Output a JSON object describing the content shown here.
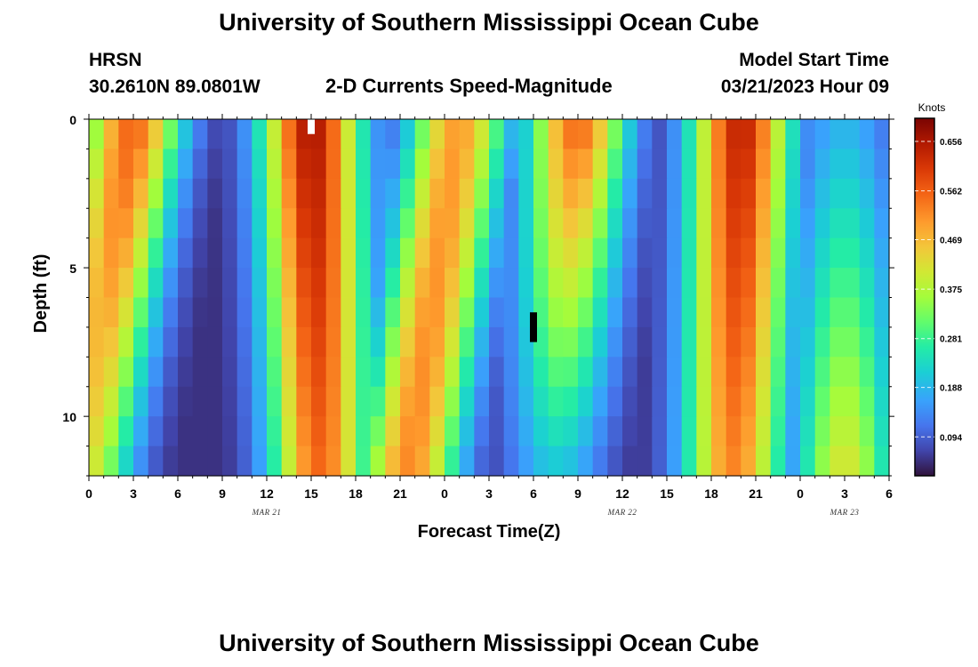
{
  "header": {
    "title": "University of Southern Mississippi Ocean Cube",
    "station": "HRSN",
    "coords": "30.2610N  89.0801W",
    "subtitle": "2-D Currents Speed-Magnitude",
    "model_start_label": "Model Start Time",
    "model_start_value": "03/21/2023 Hour 09"
  },
  "footer": {
    "title": "University of Southern Mississippi Ocean Cube"
  },
  "chart_data": {
    "type": "heatmap",
    "title": "2-D Currents Speed-Magnitude",
    "xlabel": "Forecast Time(Z)",
    "ylabel": "Depth (ft)",
    "x_range_hours": [
      0,
      54
    ],
    "y_range_ft": [
      0,
      12
    ],
    "x_tick_labels": [
      "0",
      "3",
      "6",
      "9",
      "12",
      "15",
      "18",
      "21",
      "0",
      "3",
      "6",
      "9",
      "12",
      "15",
      "18",
      "21",
      "0",
      "3",
      "6"
    ],
    "y_tick_labels": [
      "0",
      "5",
      "10"
    ],
    "y_tick_values": [
      0,
      5,
      10
    ],
    "date_labels": [
      {
        "text": "MAR 21",
        "hour": 12
      },
      {
        "text": "MAR 22",
        "hour": 36
      },
      {
        "text": "MAR 23",
        "hour": 51
      }
    ],
    "colorbar": {
      "unit": "Knots",
      "min": 0.02,
      "max": 0.7,
      "tick_labels": [
        "0.656",
        "0.562",
        "0.469",
        "0.375",
        "0.281",
        "0.188",
        "0.094"
      ],
      "tick_values": [
        0.656,
        0.562,
        0.469,
        0.375,
        0.281,
        0.188,
        0.094
      ]
    },
    "depth_levels": 12,
    "time_columns": 54,
    "peaks": [
      {
        "hour": 3,
        "surface_speed": 0.56,
        "bottom_speed": 0.42,
        "lean_hours": -3.5
      },
      {
        "hour": 15,
        "surface_speed": 0.66,
        "bottom_speed": 0.55,
        "lean_hours": 0.6
      },
      {
        "hour": 25,
        "surface_speed": 0.5,
        "bottom_speed": 0.52,
        "lean_hours": -3.5
      },
      {
        "hour": 33,
        "surface_speed": 0.56,
        "bottom_speed": 0.2,
        "lean_hours": -1.5
      },
      {
        "hour": 44,
        "surface_speed": 0.64,
        "bottom_speed": 0.52,
        "lean_hours": -0.5
      },
      {
        "hour": 51,
        "surface_speed": 0.18,
        "bottom_speed": 0.42,
        "lean_hours": 0
      }
    ],
    "missing_cells": [
      {
        "hour": 15,
        "depth_start": 0,
        "depth_end": 0.5,
        "fill": "#ffffff"
      },
      {
        "hour": 30,
        "depth_start": 6.5,
        "depth_end": 7.5,
        "fill": "#000000"
      }
    ]
  }
}
